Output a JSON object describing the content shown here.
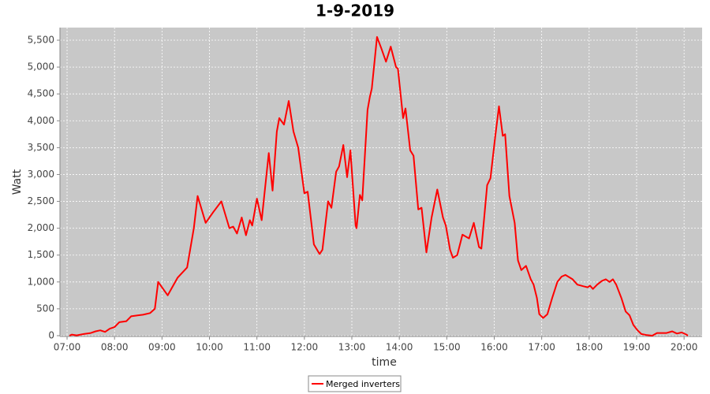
{
  "chart_data": {
    "type": "line",
    "title": "1-9-2019",
    "xlabel": "time",
    "ylabel": "Watt",
    "x": [
      7.05,
      7.1,
      7.2,
      7.35,
      7.5,
      7.6,
      7.7,
      7.8,
      7.9,
      8.0,
      8.1,
      8.25,
      8.35,
      8.5,
      8.6,
      8.75,
      8.85,
      8.92,
      9.12,
      9.33,
      9.53,
      9.67,
      9.75,
      9.92,
      10.08,
      10.25,
      10.42,
      10.5,
      10.58,
      10.68,
      10.77,
      10.85,
      10.9,
      11.0,
      11.1,
      11.25,
      11.33,
      11.42,
      11.47,
      11.57,
      11.67,
      11.77,
      11.87,
      12.0,
      12.07,
      12.2,
      12.32,
      12.38,
      12.5,
      12.57,
      12.67,
      12.73,
      12.82,
      12.9,
      12.97,
      13.08,
      13.1,
      13.17,
      13.22,
      13.33,
      13.38,
      13.42,
      13.53,
      13.62,
      13.72,
      13.82,
      13.93,
      13.97,
      14.08,
      14.13,
      14.23,
      14.3,
      14.4,
      14.47,
      14.57,
      14.68,
      14.8,
      14.92,
      14.98,
      15.07,
      15.13,
      15.22,
      15.33,
      15.47,
      15.57,
      15.68,
      15.73,
      15.85,
      15.92,
      16.02,
      16.1,
      16.18,
      16.23,
      16.32,
      16.43,
      16.5,
      16.57,
      16.67,
      16.77,
      16.83,
      16.9,
      16.95,
      17.03,
      17.12,
      17.22,
      17.33,
      17.42,
      17.5,
      17.65,
      17.75,
      17.88,
      17.97,
      18.02,
      18.08,
      18.17,
      18.27,
      18.35,
      18.43,
      18.5,
      18.57,
      18.68,
      18.77,
      18.85,
      18.93,
      19.02,
      19.1,
      19.22,
      19.33,
      19.43,
      19.63,
      19.75,
      19.85,
      19.95,
      20.05,
      20.08
    ],
    "series": [
      {
        "name": "Merged inverters",
        "color": "#ff0000",
        "values": [
          0,
          20,
          5,
          30,
          50,
          80,
          100,
          70,
          130,
          160,
          250,
          270,
          360,
          380,
          390,
          420,
          500,
          1000,
          750,
          1080,
          1270,
          2000,
          2600,
          2100,
          2300,
          2500,
          2000,
          2030,
          1900,
          2200,
          1870,
          2150,
          2050,
          2550,
          2150,
          3400,
          2700,
          3800,
          4050,
          3930,
          4370,
          3800,
          3500,
          2650,
          2680,
          1700,
          1520,
          1600,
          2500,
          2380,
          3050,
          3150,
          3550,
          2950,
          3450,
          2050,
          2000,
          2620,
          2520,
          4200,
          4450,
          4600,
          5560,
          5350,
          5100,
          5380,
          5000,
          4970,
          4050,
          4230,
          3450,
          3350,
          2350,
          2380,
          1550,
          2200,
          2720,
          2200,
          2050,
          1600,
          1450,
          1500,
          1880,
          1810,
          2100,
          1650,
          1620,
          2800,
          2930,
          3700,
          4270,
          3720,
          3750,
          2600,
          2100,
          1400,
          1220,
          1300,
          1050,
          950,
          700,
          400,
          330,
          400,
          700,
          1000,
          1100,
          1130,
          1050,
          950,
          920,
          900,
          930,
          870,
          950,
          1020,
          1050,
          1000,
          1050,
          950,
          700,
          450,
          380,
          200,
          100,
          30,
          10,
          0,
          50,
          50,
          80,
          40,
          60,
          20,
          0
        ]
      }
    ],
    "xlim": [
      6.85,
      20.38
    ],
    "xticks": [
      {
        "value": 7,
        "label": "07:00"
      },
      {
        "value": 8,
        "label": "08:00"
      },
      {
        "value": 9,
        "label": "09:00"
      },
      {
        "value": 10,
        "label": "10:00"
      },
      {
        "value": 11,
        "label": "11:00"
      },
      {
        "value": 12,
        "label": "12:00"
      },
      {
        "value": 13,
        "label": "13:00"
      },
      {
        "value": 14,
        "label": "14:00"
      },
      {
        "value": 15,
        "label": "15:00"
      },
      {
        "value": 16,
        "label": "16:00"
      },
      {
        "value": 17,
        "label": "17:00"
      },
      {
        "value": 18,
        "label": "18:00"
      },
      {
        "value": 19,
        "label": "19:00"
      },
      {
        "value": 20,
        "label": "20:00"
      }
    ],
    "ylim": [
      -15,
      5735
    ],
    "yticks": [
      0,
      500,
      {
        "value": 1000,
        "label": "1,000"
      },
      {
        "value": 1500,
        "label": "1,500"
      },
      {
        "value": 2000,
        "label": "2,000"
      },
      {
        "value": 2500,
        "label": "2,500"
      },
      {
        "value": 3000,
        "label": "3,000"
      },
      {
        "value": 3500,
        "label": "3,500"
      },
      {
        "value": 4000,
        "label": "4,000"
      },
      {
        "value": 4500,
        "label": "4,500"
      },
      {
        "value": 5000,
        "label": "5,000"
      },
      {
        "value": 5500,
        "label": "5,500"
      }
    ],
    "grid": true,
    "legend": "bottom"
  }
}
